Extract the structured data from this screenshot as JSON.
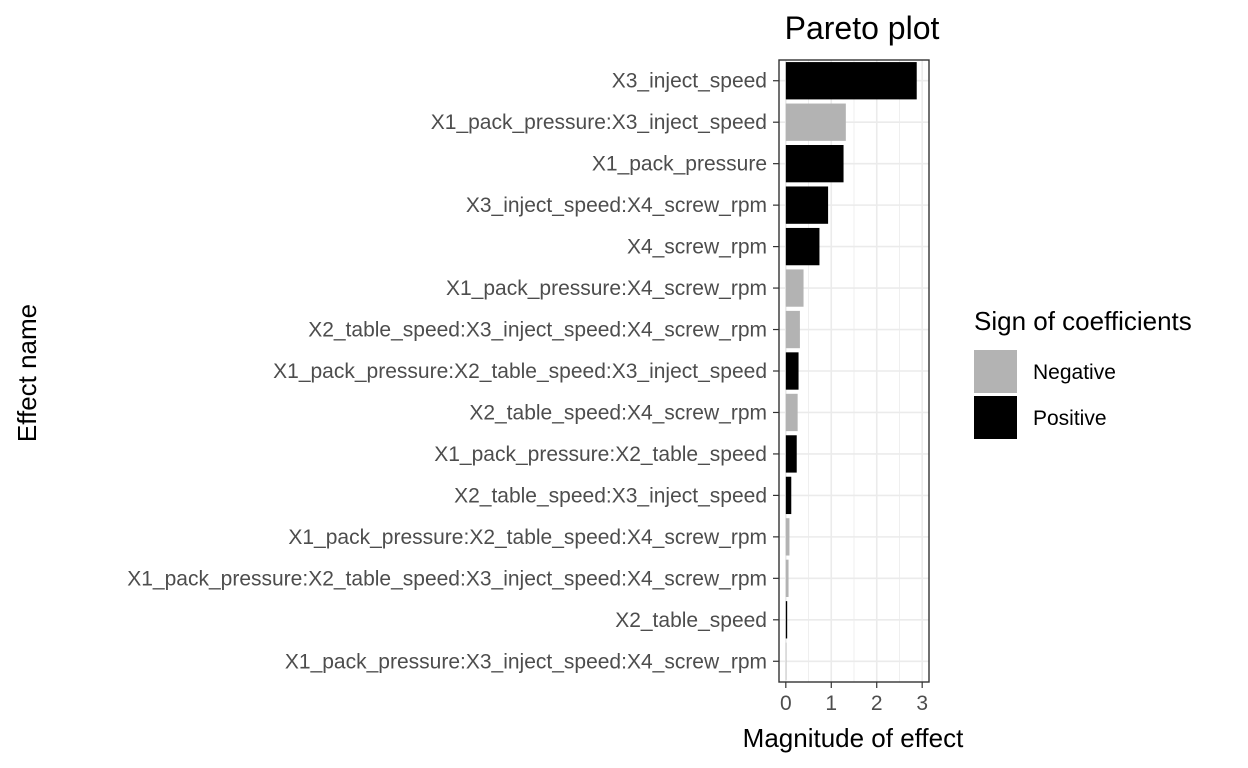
{
  "chart_data": {
    "type": "bar",
    "orientation": "horizontal",
    "title": "Pareto plot",
    "xlabel": "Magnitude of effect",
    "ylabel": "Effect name",
    "xlim": [
      0,
      3
    ],
    "xticks": [
      0,
      1,
      2,
      3
    ],
    "grid": true,
    "legend": {
      "title": "Sign of coefficients",
      "placement": "right",
      "entries": [
        {
          "name": "Negative",
          "color": "#b3b3b3"
        },
        {
          "name": "Positive",
          "color": "#000000"
        }
      ]
    },
    "categories": [
      "X3_inject_speed",
      "X1_pack_pressure:X3_inject_speed",
      "X1_pack_pressure",
      "X3_inject_speed:X4_screw_rpm",
      "X4_screw_rpm",
      "X1_pack_pressure:X4_screw_rpm",
      "X2_table_speed:X3_inject_speed:X4_screw_rpm",
      "X1_pack_pressure:X2_table_speed:X3_inject_speed",
      "X2_table_speed:X4_screw_rpm",
      "X1_pack_pressure:X2_table_speed",
      "X2_table_speed:X3_inject_speed",
      "X1_pack_pressure:X2_table_speed:X4_screw_rpm",
      "X1_pack_pressure:X2_table_speed:X3_inject_speed:X4_screw_rpm",
      "X2_table_speed",
      "X1_pack_pressure:X3_inject_speed:X4_screw_rpm"
    ],
    "values": [
      2.88,
      1.32,
      1.27,
      0.93,
      0.74,
      0.39,
      0.31,
      0.28,
      0.26,
      0.24,
      0.12,
      0.08,
      0.06,
      0.03,
      0.01
    ],
    "signs": [
      "Positive",
      "Negative",
      "Positive",
      "Positive",
      "Positive",
      "Negative",
      "Negative",
      "Positive",
      "Negative",
      "Positive",
      "Positive",
      "Negative",
      "Negative",
      "Positive",
      "Negative"
    ]
  }
}
